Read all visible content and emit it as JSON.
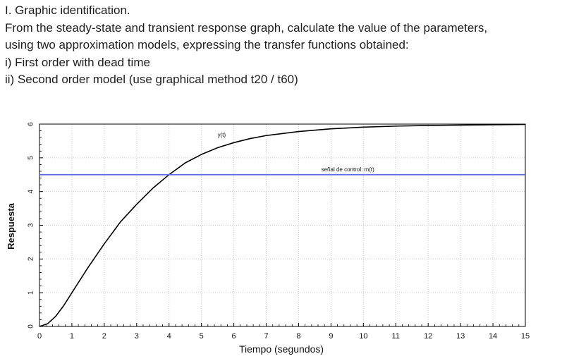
{
  "problem": {
    "heading": "I. Graphic identification.",
    "instruction_line1": "From the steady-state and transient response graph, calculate the value of the parameters,",
    "instruction_line2": "using two approximation models, expressing the transfer functions obtained:",
    "item_i": "i) First order with dead time",
    "item_ii": "ii) Second order model (use graphical method t20 / t60)"
  },
  "chart_data": {
    "type": "line",
    "xlabel": "Tiempo (segundos)",
    "ylabel": "Respuesta",
    "xlim": [
      0,
      15
    ],
    "ylim": [
      0,
      6
    ],
    "x_ticks": [
      "0",
      "1",
      "2",
      "3",
      "4",
      "5",
      "6",
      "7",
      "8",
      "9",
      "10",
      "11",
      "12",
      "13",
      "14",
      "15"
    ],
    "y_ticks": [
      "0",
      "1",
      "2",
      "3",
      "4",
      "5",
      "6"
    ],
    "grid": "dotted",
    "series": [
      {
        "name": "y(t)",
        "color": "#000000",
        "x": [
          0,
          0.25,
          0.5,
          0.75,
          1,
          1.5,
          2,
          2.5,
          3,
          3.5,
          4,
          4.5,
          5,
          5.5,
          6,
          6.5,
          7,
          8,
          9,
          10,
          11,
          12,
          13,
          14,
          15
        ],
        "values": [
          0,
          0.08,
          0.3,
          0.62,
          1.0,
          1.75,
          2.45,
          3.1,
          3.62,
          4.1,
          4.5,
          4.85,
          5.1,
          5.3,
          5.45,
          5.57,
          5.66,
          5.78,
          5.86,
          5.91,
          5.94,
          5.96,
          5.97,
          5.98,
          5.99
        ]
      },
      {
        "name": "señal de control: m(t)",
        "color": "#5b6de0",
        "x": [
          0,
          15
        ],
        "values": [
          4.5,
          4.5
        ]
      }
    ],
    "annotations": [
      {
        "text": "y(t)",
        "x": 5.5,
        "y": 5.62
      },
      {
        "text": "señal de control: m(t)",
        "x": 8.7,
        "y": 4.6
      }
    ]
  }
}
